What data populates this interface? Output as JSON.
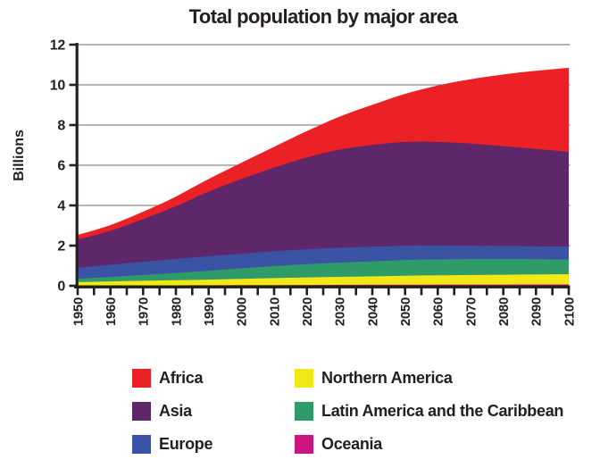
{
  "title": "Total population by major area",
  "y_axis": {
    "label": "Billions",
    "ticks": [
      0,
      2,
      4,
      6,
      8,
      10,
      12
    ],
    "min": 0,
    "max": 12
  },
  "x_axis": {
    "start_year": 1950,
    "end_year": 2100,
    "tick_interval": 5,
    "label_interval": 10,
    "labels": [
      "1950",
      "1960",
      "1970",
      "1980",
      "1990",
      "2000",
      "2010",
      "2020",
      "2030",
      "2040",
      "2050",
      "2060",
      "2070",
      "2080",
      "2090",
      "2100"
    ]
  },
  "chart_data": {
    "type": "area",
    "stacked": true,
    "title": "Total population by major area",
    "xlabel": "",
    "ylabel": "Billions",
    "ylim": [
      0,
      12
    ],
    "xlim": [
      1950,
      2100
    ],
    "grid": "horizontal-only",
    "legend_position": "bottom-two-columns",
    "x": [
      1950,
      1960,
      1970,
      1980,
      1990,
      2000,
      2010,
      2020,
      2030,
      2040,
      2050,
      2060,
      2070,
      2080,
      2090,
      2100
    ],
    "series": [
      {
        "name": "Oceania",
        "color": "#cb1580",
        "values": [
          0.013,
          0.016,
          0.02,
          0.023,
          0.027,
          0.031,
          0.037,
          0.042,
          0.047,
          0.052,
          0.057,
          0.06,
          0.062,
          0.064,
          0.065,
          0.066
        ]
      },
      {
        "name": "Northern America",
        "color": "#f2e816",
        "values": [
          0.172,
          0.204,
          0.231,
          0.254,
          0.28,
          0.313,
          0.347,
          0.374,
          0.396,
          0.417,
          0.446,
          0.461,
          0.474,
          0.487,
          0.5,
          0.513
        ]
      },
      {
        "name": "Latin America and the Caribbean",
        "color": "#2f9b68",
        "values": [
          0.168,
          0.22,
          0.287,
          0.364,
          0.446,
          0.526,
          0.596,
          0.661,
          0.711,
          0.748,
          0.782,
          0.793,
          0.791,
          0.778,
          0.758,
          0.736
        ]
      },
      {
        "name": "Europe",
        "color": "#3a53a4",
        "values": [
          0.549,
          0.604,
          0.656,
          0.694,
          0.721,
          0.726,
          0.74,
          0.744,
          0.741,
          0.729,
          0.709,
          0.689,
          0.668,
          0.653,
          0.645,
          0.639
        ]
      },
      {
        "name": "Asia",
        "color": "#5e2769",
        "values": [
          1.396,
          1.695,
          2.129,
          2.626,
          3.213,
          3.717,
          4.165,
          4.565,
          4.887,
          5.061,
          5.164,
          5.158,
          5.083,
          4.971,
          4.842,
          4.712
        ]
      },
      {
        "name": "Africa",
        "color": "#ec2126",
        "values": [
          0.229,
          0.285,
          0.366,
          0.478,
          0.63,
          0.808,
          1.031,
          1.312,
          1.634,
          1.999,
          2.393,
          2.81,
          3.202,
          3.563,
          3.889,
          4.185
        ]
      }
    ]
  },
  "legend": {
    "items": [
      {
        "label": "Africa",
        "color": "#ec2126"
      },
      {
        "label": "Asia",
        "color": "#5e2769"
      },
      {
        "label": "Europe",
        "color": "#3a53a4"
      },
      {
        "label": "Northern America",
        "color": "#f2e816"
      },
      {
        "label": "Latin America and the Caribbean",
        "color": "#2f9b68"
      },
      {
        "label": "Oceania",
        "color": "#cb1580"
      }
    ]
  },
  "colors": {
    "background": "#ffffff",
    "text": "#231f20",
    "axis": "#231f20",
    "gridline": "#8b8b8b"
  }
}
